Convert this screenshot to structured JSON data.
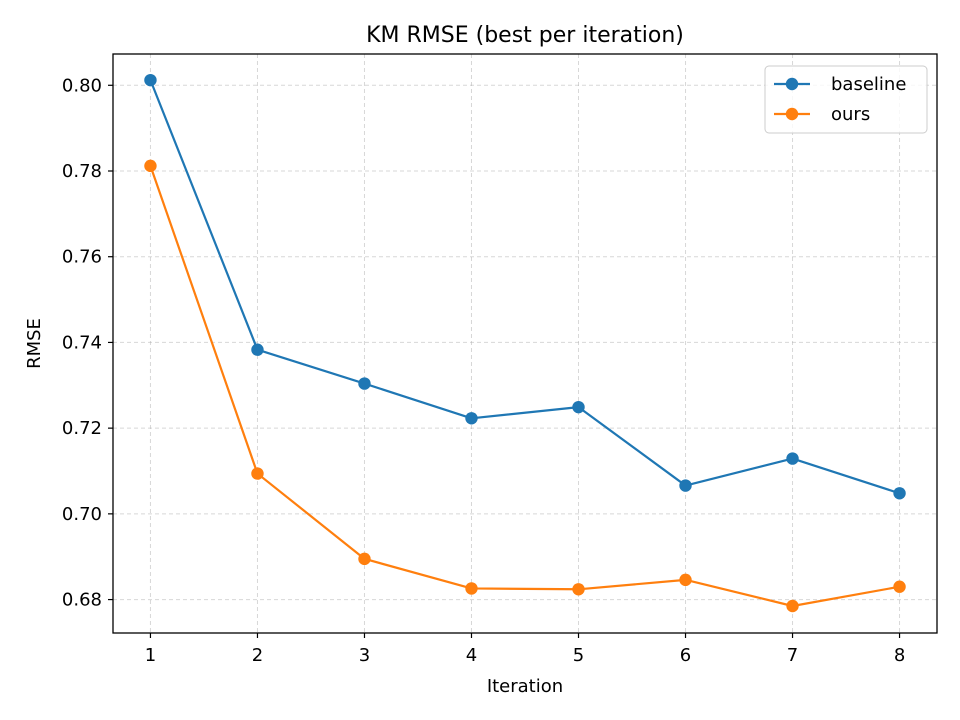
{
  "chart_data": {
    "type": "line",
    "title": "KM RMSE (best per iteration)",
    "xlabel": "Iteration",
    "ylabel": "RMSE",
    "x": [
      1,
      2,
      3,
      4,
      5,
      6,
      7,
      8
    ],
    "xticks": [
      "1",
      "2",
      "3",
      "4",
      "5",
      "6",
      "7",
      "8"
    ],
    "yticks": [
      "0.68",
      "0.70",
      "0.72",
      "0.74",
      "0.76",
      "0.78",
      "0.80"
    ],
    "xlim": [
      0.65,
      8.35
    ],
    "ylim": [
      0.6722,
      0.8073
    ],
    "grid": true,
    "legend_position": "top-right",
    "series": [
      {
        "name": "baseline",
        "color": "#1f77b4",
        "values": [
          0.8012,
          0.7383,
          0.7304,
          0.7223,
          0.7249,
          0.7066,
          0.7129,
          0.7048
        ]
      },
      {
        "name": "ours",
        "color": "#ff7f0e",
        "values": [
          0.7812,
          0.7094,
          0.6895,
          0.6826,
          0.6824,
          0.6846,
          0.6785,
          0.683
        ]
      }
    ]
  }
}
